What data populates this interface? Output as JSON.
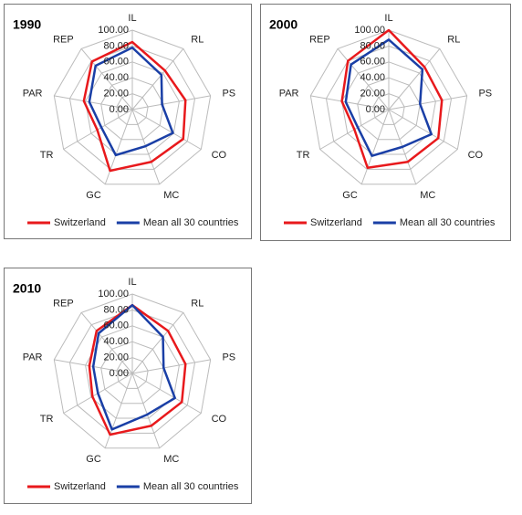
{
  "chart_data": [
    {
      "type": "radar",
      "title": "1990",
      "categories": [
        "IL",
        "RL",
        "PS",
        "CO",
        "MC",
        "GC",
        "TR",
        "PAR",
        "REP"
      ],
      "rlim": [
        0,
        100
      ],
      "rticks": [
        {
          "value": 0,
          "label": "0.00"
        },
        {
          "value": 20,
          "label": "20.00"
        },
        {
          "value": 40,
          "label": "40.00"
        },
        {
          "value": 60,
          "label": "60.00"
        },
        {
          "value": 80,
          "label": "80.00"
        },
        {
          "value": 100,
          "label": "100.00"
        }
      ],
      "series": [
        {
          "name": "Switzerland",
          "color": "#e8191c",
          "values": [
            85,
            64,
            68,
            74,
            70,
            82,
            51,
            62,
            79
          ]
        },
        {
          "name": "Mean all 30 countries",
          "color": "#1a3fa6",
          "values": [
            78,
            57,
            38,
            59,
            49,
            61,
            45,
            55,
            72
          ]
        }
      ]
    },
    {
      "type": "radar",
      "title": "2000",
      "categories": [
        "IL",
        "RL",
        "PS",
        "CO",
        "MC",
        "GC",
        "TR",
        "PAR",
        "REP"
      ],
      "rlim": [
        0,
        100
      ],
      "rticks": [
        {
          "value": 0,
          "label": "0.00"
        },
        {
          "value": 20,
          "label": "20.00"
        },
        {
          "value": 40,
          "label": "40.00"
        },
        {
          "value": 60,
          "label": "60.00"
        },
        {
          "value": 80,
          "label": "80.00"
        },
        {
          "value": 100,
          "label": "100.00"
        }
      ],
      "series": [
        {
          "name": "Switzerland",
          "color": "#e8191c",
          "values": [
            100,
            70,
            68,
            72,
            70,
            78,
            50,
            60,
            80
          ]
        },
        {
          "name": "Mean all 30 countries",
          "color": "#1a3fa6",
          "values": [
            88,
            66,
            40,
            62,
            50,
            62,
            45,
            55,
            74
          ]
        }
      ]
    },
    {
      "type": "radar",
      "title": "2010",
      "categories": [
        "IL",
        "RL",
        "PS",
        "CO",
        "MC",
        "GC",
        "TR",
        "PAR",
        "REP"
      ],
      "rlim": [
        0,
        100
      ],
      "rticks": [
        {
          "value": 0,
          "label": "0.00"
        },
        {
          "value": 20,
          "label": "20.00"
        },
        {
          "value": 40,
          "label": "40.00"
        },
        {
          "value": 60,
          "label": "60.00"
        },
        {
          "value": 80,
          "label": "80.00"
        },
        {
          "value": 100,
          "label": "100.00"
        }
      ],
      "series": [
        {
          "name": "Switzerland",
          "color": "#e8191c",
          "values": [
            86,
            70,
            68,
            72,
            70,
            82,
            58,
            55,
            70
          ]
        },
        {
          "name": "Mean all 30 countries",
          "color": "#1a3fa6",
          "values": [
            86,
            60,
            40,
            62,
            55,
            75,
            50,
            50,
            66
          ]
        }
      ]
    }
  ]
}
